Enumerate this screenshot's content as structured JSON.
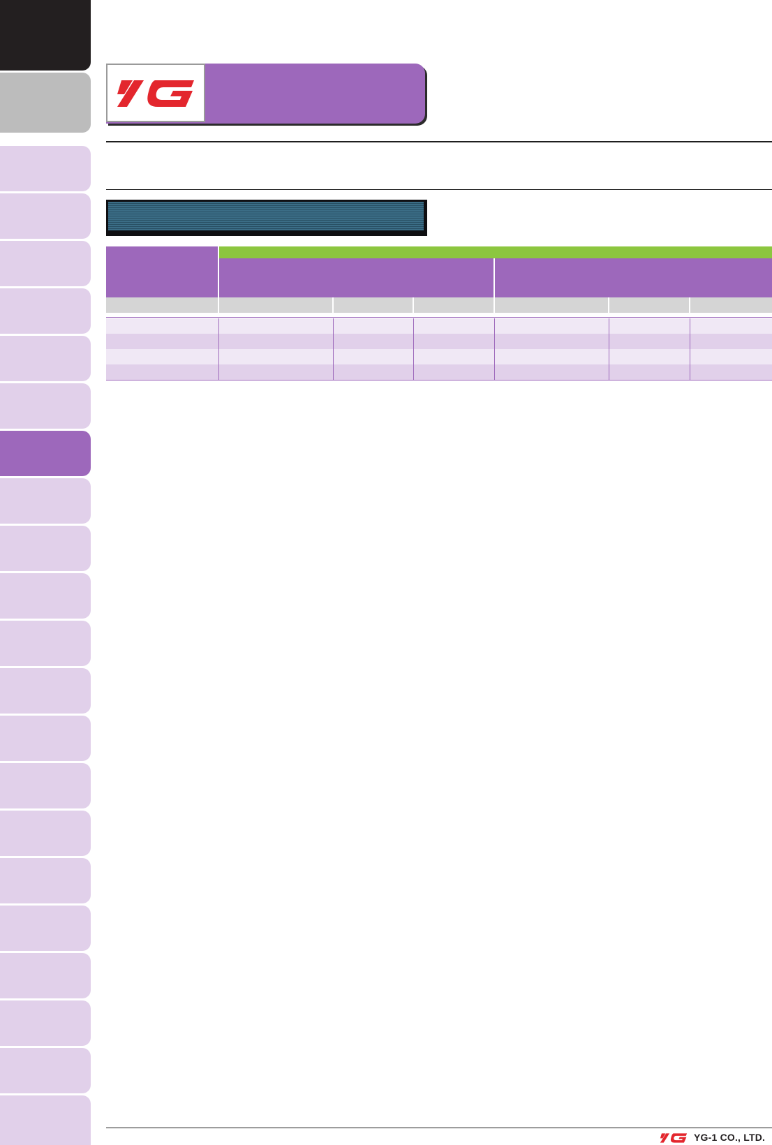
{
  "brand": {
    "logo_name": "YG",
    "company": "YG-1 CO., LTD.",
    "accent_color": "#9d68bb",
    "logo_color": "#e3262d",
    "header_green": "#8cc63f"
  },
  "sidebar": {
    "active_index": 6,
    "tab_count": 21
  },
  "table": {
    "rows": [
      [
        "",
        "",
        "",
        "",
        "",
        "",
        ""
      ],
      [
        "",
        "",
        "",
        "",
        "",
        "",
        ""
      ],
      [
        "",
        "",
        "",
        "",
        "",
        "",
        ""
      ],
      [
        "",
        "",
        "",
        "",
        "",
        "",
        ""
      ]
    ],
    "subheaders": [
      "",
      "",
      "",
      "",
      "",
      "",
      ""
    ]
  }
}
